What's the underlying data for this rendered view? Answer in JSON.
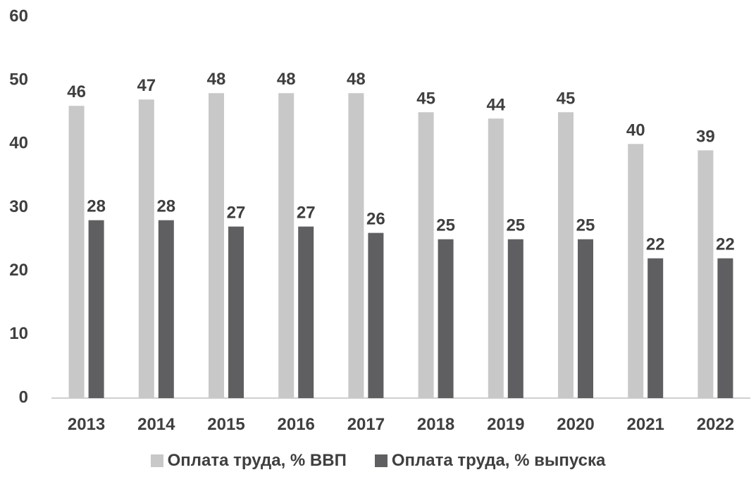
{
  "chart_data": {
    "type": "bar",
    "categories": [
      "2013",
      "2014",
      "2015",
      "2016",
      "2017",
      "2018",
      "2019",
      "2020",
      "2021",
      "2022"
    ],
    "series": [
      {
        "name": "Оплата труда, % ВВП",
        "color": "#c8c8c8",
        "values": [
          46,
          47,
          48,
          48,
          48,
          45,
          44,
          45,
          40,
          39
        ]
      },
      {
        "name": "Оплата труда, % выпуска",
        "color": "#5f5f61",
        "values": [
          28,
          28,
          27,
          27,
          26,
          25,
          25,
          25,
          22,
          22
        ]
      }
    ],
    "ylim": [
      0,
      60
    ],
    "yticks": [
      0,
      10,
      20,
      30,
      40,
      50,
      60
    ],
    "grid": false,
    "legend": "bottom",
    "data_labels": true,
    "colors": {
      "axis_text": "#3f3f3f",
      "axis_line": "#bfbfbf"
    }
  }
}
